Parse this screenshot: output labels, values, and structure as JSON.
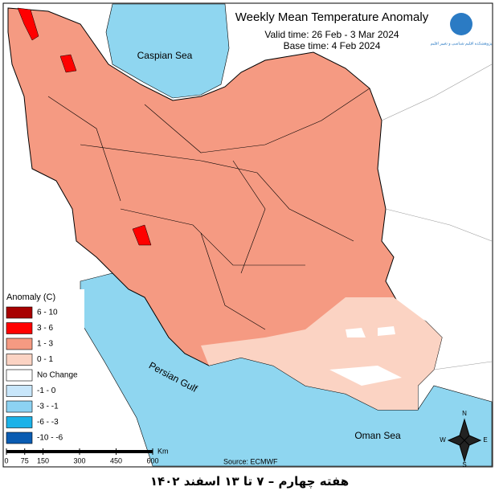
{
  "header": {
    "title": "Weekly Mean Temperature Anomaly",
    "valid_time": "Valid time: 26 Feb - 3 Mar 2024",
    "base_time": "Base time: 4 Feb 2024",
    "logo_text": "پژوهشکده اقلیم شناسی و تغییر اقلیم"
  },
  "water_labels": [
    "Caspian Sea",
    "Persian Gulf",
    "Oman Sea"
  ],
  "legend": {
    "title": "Anomaly (C)",
    "items": [
      {
        "label": "6 - 10",
        "color": "#a80000"
      },
      {
        "label": "3 - 6",
        "color": "#ff0000"
      },
      {
        "label": "1 - 3",
        "color": "#f59a82"
      },
      {
        "label": "0 - 1",
        "color": "#fbd3c3"
      },
      {
        "label": "No Change",
        "color": "#ffffff"
      },
      {
        "label": "-1 - 0",
        "color": "#c8e6fa"
      },
      {
        "label": "-3 - -1",
        "color": "#8cd2f2"
      },
      {
        "label": "-6 - -3",
        "color": "#1bb2e8"
      },
      {
        "label": "-10 - -6",
        "color": "#0a5cb2"
      }
    ]
  },
  "scale_bar": {
    "ticks": [
      0,
      75,
      150,
      300,
      450,
      600
    ],
    "unit": "Km"
  },
  "source": "Source: ECMWF",
  "compass": {
    "n": "N",
    "s": "S",
    "e": "E",
    "w": "W"
  },
  "footer": "هفته چهارم – ۷ تا ۱۳ اسفند ۱۴۰۲"
}
